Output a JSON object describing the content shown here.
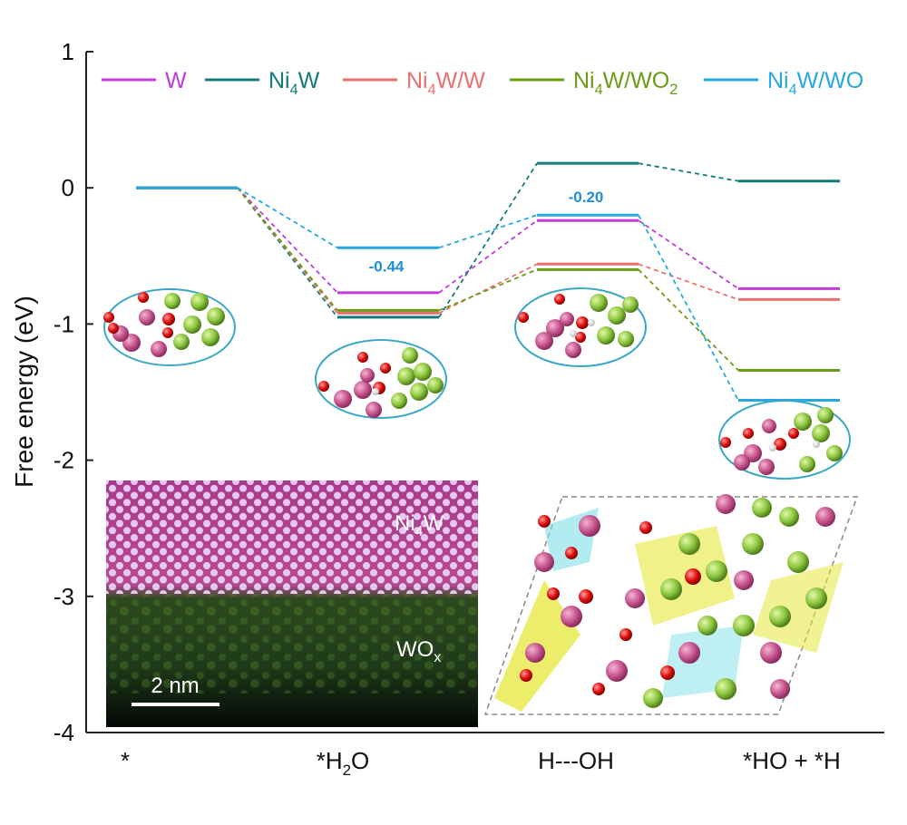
{
  "chart_data": {
    "type": "line",
    "subtype": "free-energy-step-diagram",
    "title": "",
    "xlabel": "",
    "ylabel": "Free energy (eV)",
    "ylim": [
      -4,
      1
    ],
    "yticks": [
      1,
      0,
      -1,
      -2,
      -3,
      -4
    ],
    "categories": [
      "*",
      "*H2O",
      "H---OH",
      "*HO + *H"
    ],
    "grid": false,
    "legend_position": "top",
    "series": [
      {
        "name": "W",
        "color": "#c03bd9",
        "values": [
          0,
          -0.77,
          -0.24,
          -0.74
        ]
      },
      {
        "name": "Ni4W",
        "color": "#137a7a",
        "values": [
          0,
          -0.95,
          0.18,
          0.05
        ]
      },
      {
        "name": "Ni4W/W",
        "color": "#ea6f6f",
        "values": [
          0,
          -0.92,
          -0.56,
          -0.82
        ]
      },
      {
        "name": "Ni4W/WO2",
        "color": "#6c9b16",
        "values": [
          0,
          -0.9,
          -0.6,
          -1.34
        ]
      },
      {
        "name": "Ni4W/WO",
        "color": "#25a8e0",
        "values": [
          0,
          -0.44,
          -0.2,
          -1.56
        ]
      }
    ],
    "annotations": [
      {
        "text": "-0.44",
        "series": "Ni4W/WO",
        "step": 1,
        "color": "#1f8fd6"
      },
      {
        "text": "-0.20",
        "series": "Ni4W/WO",
        "step": 2,
        "color": "#1f8fd6"
      }
    ],
    "insets": {
      "stem_image": {
        "label_top": "Ni4W",
        "label_bottom": "WOx",
        "scale_bar": "2 nm"
      },
      "charge_density_image": {}
    }
  }
}
